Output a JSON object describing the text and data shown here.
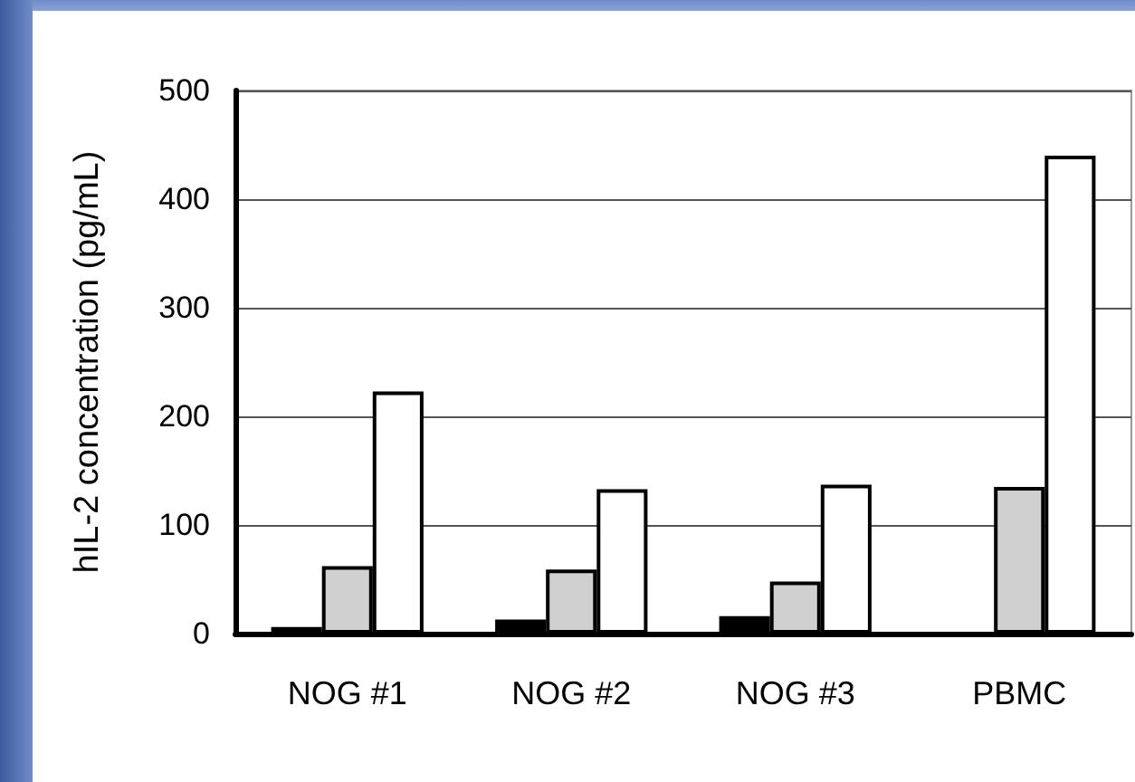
{
  "chart_data": {
    "type": "bar",
    "ylabel": "hIL-2 concentration (pg/mL)",
    "categories": [
      "NOG #1",
      "NOG #2",
      "NOG #3",
      "PBMC"
    ],
    "series": [
      {
        "color": "#000000",
        "values": [
          6,
          13,
          16,
          null
        ]
      },
      {
        "color": "#d0d0d0",
        "values": [
          62,
          59,
          48,
          135
        ]
      },
      {
        "color": "#ffffff",
        "values": [
          223,
          133,
          137,
          440
        ]
      }
    ],
    "ylim": [
      0,
      500
    ],
    "yticks": [
      0,
      100,
      200,
      300,
      400,
      500
    ],
    "grid": "y"
  }
}
